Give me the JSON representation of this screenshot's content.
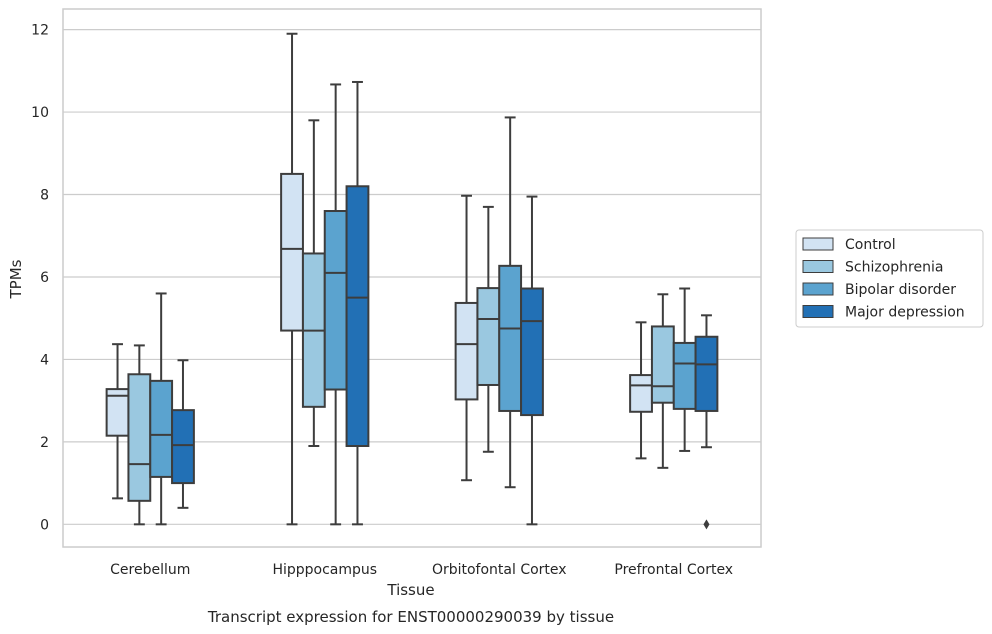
{
  "chart_data": {
    "type": "box",
    "title": "",
    "caption": "Transcript expression for ENST00000290039 by tissue",
    "xlabel": "Tissue",
    "ylabel": "TPMs",
    "ylim": [
      -0.55,
      12.5
    ],
    "yticks": [
      0,
      2,
      4,
      6,
      8,
      10,
      12
    ],
    "grid": "horizontal",
    "legend_position": "right",
    "categories": [
      "Cerebellum",
      "Hipppocampus",
      "Orbitofontal Cortex",
      "Prefrontal Cortex"
    ],
    "series": [
      {
        "name": "Control",
        "color": "#d2e3f3",
        "boxes": [
          {
            "whislo": 0.63,
            "q1": 2.15,
            "med": 3.12,
            "q3": 3.28,
            "whishi": 4.37,
            "fliers": []
          },
          {
            "whislo": 0.0,
            "q1": 4.7,
            "med": 6.68,
            "q3": 8.5,
            "whishi": 11.9,
            "fliers": []
          },
          {
            "whislo": 1.07,
            "q1": 3.03,
            "med": 4.37,
            "q3": 5.37,
            "whishi": 7.97,
            "fliers": []
          },
          {
            "whislo": 1.6,
            "q1": 2.73,
            "med": 3.37,
            "q3": 3.62,
            "whishi": 4.9,
            "fliers": []
          }
        ]
      },
      {
        "name": "Schizophrenia",
        "color": "#9ac8e0",
        "boxes": [
          {
            "whislo": 0.0,
            "q1": 0.57,
            "med": 1.46,
            "q3": 3.64,
            "whishi": 4.34,
            "fliers": []
          },
          {
            "whislo": 1.9,
            "q1": 2.85,
            "med": 4.7,
            "q3": 6.57,
            "whishi": 9.8,
            "fliers": []
          },
          {
            "whislo": 1.76,
            "q1": 3.38,
            "med": 4.98,
            "q3": 5.73,
            "whishi": 7.7,
            "fliers": []
          },
          {
            "whislo": 1.37,
            "q1": 2.95,
            "med": 3.35,
            "q3": 4.8,
            "whishi": 5.58,
            "fliers": []
          }
        ]
      },
      {
        "name": "Bipolar disorder",
        "color": "#5ba3cf",
        "boxes": [
          {
            "whislo": 0.0,
            "q1": 1.15,
            "med": 2.17,
            "q3": 3.48,
            "whishi": 5.6,
            "fliers": []
          },
          {
            "whislo": 0.0,
            "q1": 3.27,
            "med": 6.1,
            "q3": 7.6,
            "whishi": 10.67,
            "fliers": []
          },
          {
            "whislo": 0.9,
            "q1": 2.75,
            "med": 4.75,
            "q3": 6.27,
            "whishi": 9.87,
            "fliers": []
          },
          {
            "whislo": 1.78,
            "q1": 2.8,
            "med": 3.9,
            "q3": 4.4,
            "whishi": 5.72,
            "fliers": []
          }
        ]
      },
      {
        "name": "Major depression",
        "color": "#2270b5",
        "boxes": [
          {
            "whislo": 0.4,
            "q1": 1.0,
            "med": 1.92,
            "q3": 2.77,
            "whishi": 3.98,
            "fliers": []
          },
          {
            "whislo": 0.0,
            "q1": 1.9,
            "med": 5.5,
            "q3": 8.2,
            "whishi": 10.73,
            "fliers": []
          },
          {
            "whislo": 0.0,
            "q1": 2.65,
            "med": 4.93,
            "q3": 5.72,
            "whishi": 7.95,
            "fliers": []
          },
          {
            "whislo": 1.87,
            "q1": 2.75,
            "med": 3.88,
            "q3": 4.55,
            "whishi": 5.07,
            "fliers": [
              0.0
            ]
          }
        ]
      }
    ]
  }
}
